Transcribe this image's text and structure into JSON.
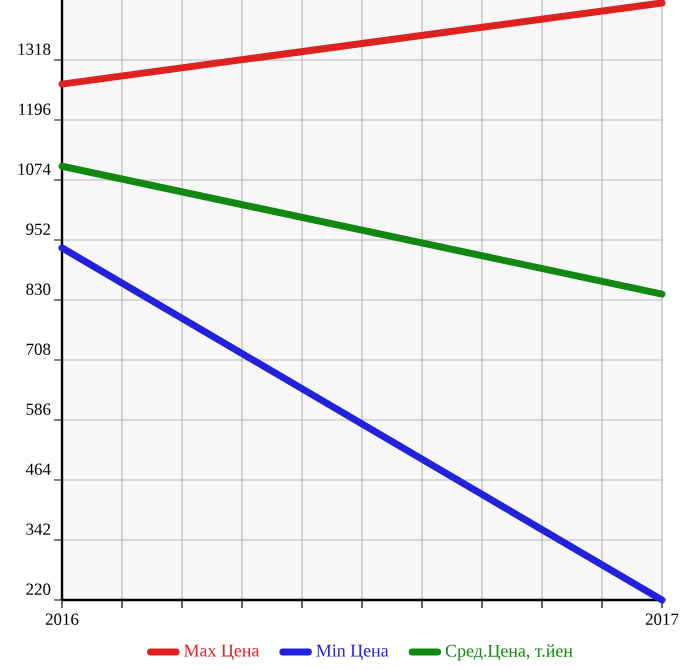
{
  "chart_data": {
    "type": "line",
    "x": [
      2016,
      2017
    ],
    "series": [
      {
        "name": "Max Цена",
        "color": "#dd2222",
        "values": [
          1269,
          1434
        ]
      },
      {
        "name": "Min Цена",
        "color": "#2222dd",
        "values": [
          936,
          220
        ]
      },
      {
        "name": "Сред.Цена, т.йен",
        "color": "#118811",
        "values": [
          1102,
          842
        ]
      }
    ],
    "xlim": [
      2016,
      2017
    ],
    "xticks": [
      2016,
      {
        "value": 2016.1,
        "label": null
      },
      {
        "value": 2016.2,
        "label": null
      },
      {
        "value": 2016.3,
        "label": null
      },
      {
        "value": 2016.4,
        "label": null
      },
      {
        "value": 2016.5,
        "label": null
      },
      {
        "value": 2016.6,
        "label": null
      },
      {
        "value": 2016.7,
        "label": null
      },
      {
        "value": 2016.8,
        "label": null
      },
      {
        "value": 2016.9,
        "label": null
      },
      2017
    ],
    "ylim": [
      220,
      1440
    ],
    "yticks": [
      220,
      342,
      464,
      586,
      708,
      830,
      952,
      1074,
      1196,
      1318
    ],
    "grid": true,
    "legend": "bottom",
    "marker": "none"
  }
}
